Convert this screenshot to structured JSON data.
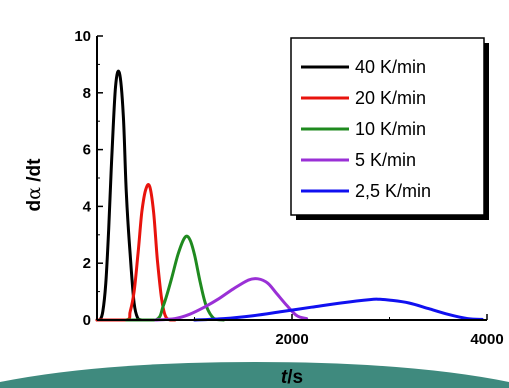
{
  "colors": {
    "teal_accent": "#3f8a7e",
    "axis": "#000000",
    "background": "#ffffff"
  },
  "chart_data": {
    "type": "line",
    "title": "",
    "xlabel": "t /s",
    "xlabel_parts": {
      "var": "t",
      "unit": "/s"
    },
    "ylabel": "dα /dt",
    "ylabel_parts": {
      "pre": "d",
      "greek": "α",
      "post": " /dt"
    },
    "xlim": [
      0,
      4000
    ],
    "ylim": [
      0,
      10
    ],
    "x_ticks": [
      2000,
      4000
    ],
    "x_tick_labels": [
      "2000",
      "4000"
    ],
    "y_ticks": [
      0,
      2,
      4,
      6,
      8,
      10
    ],
    "y_tick_labels": [
      "0",
      "2",
      "4",
      "6",
      "8",
      "10"
    ],
    "grid": false,
    "legend_position": "top-right",
    "series": [
      {
        "name": "40 K/min",
        "color": "#000000",
        "x": [
          0,
          30,
          60,
          90,
          120,
          150,
          190,
          230,
          270,
          300,
          340,
          380,
          420,
          460,
          500
        ],
        "y": [
          0,
          0,
          0.3,
          1.3,
          3.2,
          5.6,
          8.2,
          8.7,
          7.2,
          4.5,
          2.3,
          0.6,
          0.05,
          0,
          0
        ]
      },
      {
        "name": "20 K/min",
        "color": "#e8130d",
        "x": [
          0,
          300,
          340,
          380,
          420,
          460,
          500,
          540,
          580,
          620,
          660,
          700,
          750,
          800
        ],
        "y": [
          0,
          0,
          0.3,
          1.0,
          2.3,
          3.8,
          4.6,
          4.7,
          3.8,
          2.1,
          0.8,
          0.15,
          0,
          0
        ]
      },
      {
        "name": "10 K/min",
        "color": "#1f8a1f",
        "x": [
          300,
          600,
          680,
          760,
          830,
          900,
          950,
          1000,
          1060,
          1120,
          1200,
          1300
        ],
        "y": [
          0,
          0,
          0.5,
          1.4,
          2.3,
          2.9,
          2.85,
          2.3,
          1.3,
          0.5,
          0.05,
          0
        ]
      },
      {
        "name": "5 K/min",
        "color": "#9a30d6",
        "x": [
          600,
          800,
          950,
          1100,
          1250,
          1400,
          1550,
          1650,
          1750,
          1850,
          1950,
          2050,
          2150
        ],
        "y": [
          0,
          0.05,
          0.2,
          0.45,
          0.75,
          1.1,
          1.4,
          1.45,
          1.3,
          0.9,
          0.5,
          0.15,
          0.05
        ]
      },
      {
        "name": "2,5 K/min",
        "color": "#1010f0",
        "x": [
          1000,
          1300,
          1600,
          1900,
          2200,
          2500,
          2800,
          2900,
          3000,
          3200,
          3400,
          3600,
          3800,
          3950
        ],
        "y": [
          0,
          0.05,
          0.15,
          0.3,
          0.45,
          0.6,
          0.72,
          0.73,
          0.7,
          0.6,
          0.4,
          0.2,
          0.05,
          0.02
        ]
      }
    ]
  }
}
